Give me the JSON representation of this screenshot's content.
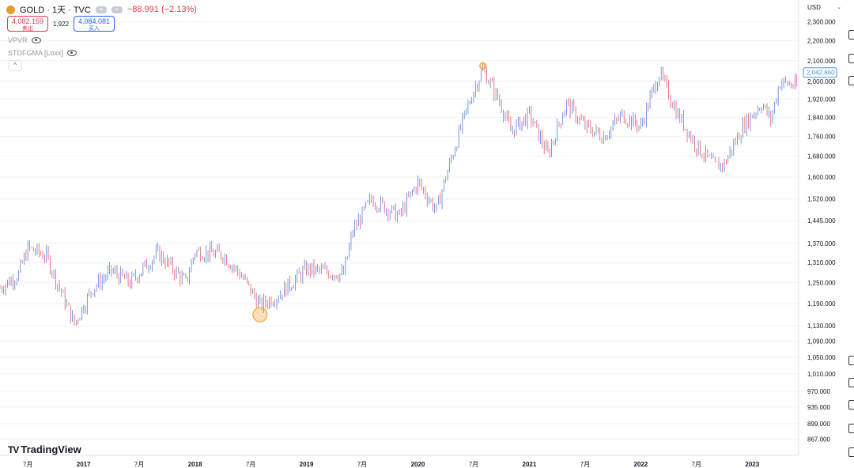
{
  "header": {
    "symbol": "GOLD · 1天 · TVC",
    "change": "−88.991 (−2.13%)",
    "market_icon": "market-status-icon",
    "sell_price": "4,082.159",
    "sell_label": "卖出",
    "spread": "1,922",
    "buy_price": "4,084.081",
    "buy_label": "买入"
  },
  "indicators": [
    {
      "name": "VPVR"
    },
    {
      "name": "STDFGMA [Loxx]"
    }
  ],
  "currency": "USD",
  "brand": "TradingView",
  "colors": {
    "up": "#5b7ee0",
    "down": "#e05a6a",
    "highlight": "#f2a33a",
    "last_price": "#4a90d9"
  },
  "chart_data": {
    "type": "candlestick",
    "y_ticks": [
      2300,
      2200,
      2100,
      2000,
      1920,
      1840,
      1760,
      1680,
      1600,
      1520,
      1445,
      1370,
      1310,
      1250,
      1190,
      1130,
      1090,
      1050,
      1010,
      970,
      935,
      899,
      867
    ],
    "y_tick_labels": [
      "2,300.000",
      "2,200.000",
      "2,100.000",
      "2,000.000",
      "1,920.000",
      "1,840.000",
      "1,760.000",
      "1,680.000",
      "1,600.000",
      "1,520.000",
      "1,445.000",
      "1,370.000",
      "1,310.000",
      "1,250.000",
      "1,190.000",
      "1,130.000",
      "1,090.000",
      "1,050.000",
      "1,010.000",
      "970.000",
      "935.000",
      "899.000",
      "867.000"
    ],
    "y_scale": "log",
    "ylim": [
      835,
      2420
    ],
    "x_labels": [
      {
        "date": "2016-07",
        "label": "7月"
      },
      {
        "date": "2017-01",
        "label": "2017"
      },
      {
        "date": "2017-07",
        "label": "7月"
      },
      {
        "date": "2018-01",
        "label": "2018"
      },
      {
        "date": "2018-07",
        "label": "7月"
      },
      {
        "date": "2019-01",
        "label": "2019"
      },
      {
        "date": "2019-07",
        "label": "7月"
      },
      {
        "date": "2020-01",
        "label": "2020"
      },
      {
        "date": "2020-07",
        "label": "7月"
      },
      {
        "date": "2021-01",
        "label": "2021"
      },
      {
        "date": "2021-07",
        "label": "7月"
      },
      {
        "date": "2022-01",
        "label": "2022"
      },
      {
        "date": "2022-07",
        "label": "7月"
      },
      {
        "date": "2023-01",
        "label": "2023"
      }
    ],
    "xlim": [
      "2016-04",
      "2023-06"
    ],
    "last_price": 2042.86,
    "last_price_label": "2,042.860",
    "price_path": [
      [
        "2016-04",
        1235
      ],
      [
        "2016-06",
        1275
      ],
      [
        "2016-07",
        1355
      ],
      [
        "2016-09",
        1330
      ],
      [
        "2016-10",
        1260
      ],
      [
        "2016-12",
        1135
      ],
      [
        "2017-02",
        1235
      ],
      [
        "2017-04",
        1285
      ],
      [
        "2017-06",
        1250
      ],
      [
        "2017-09",
        1340
      ],
      [
        "2017-12",
        1250
      ],
      [
        "2018-01",
        1345
      ],
      [
        "2018-04",
        1335
      ],
      [
        "2018-06",
        1270
      ],
      [
        "2018-08",
        1185
      ],
      [
        "2018-10",
        1215
      ],
      [
        "2019-01",
        1290
      ],
      [
        "2019-05",
        1275
      ],
      [
        "2019-06",
        1410
      ],
      [
        "2019-08",
        1520
      ],
      [
        "2019-11",
        1460
      ],
      [
        "2020-01",
        1580
      ],
      [
        "2020-03",
        1480
      ],
      [
        "2020-05",
        1720
      ],
      [
        "2020-07",
        1960
      ],
      [
        "2020-08",
        2060
      ],
      [
        "2020-10",
        1890
      ],
      [
        "2020-11",
        1780
      ],
      [
        "2021-01",
        1850
      ],
      [
        "2021-03",
        1685
      ],
      [
        "2021-05",
        1900
      ],
      [
        "2021-07",
        1800
      ],
      [
        "2021-09",
        1760
      ],
      [
        "2021-11",
        1850
      ],
      [
        "2022-01",
        1800
      ],
      [
        "2022-03",
        2040
      ],
      [
        "2022-05",
        1850
      ],
      [
        "2022-07",
        1720
      ],
      [
        "2022-09",
        1640
      ],
      [
        "2022-10",
        1650
      ],
      [
        "2022-12",
        1800
      ],
      [
        "2023-02",
        1900
      ],
      [
        "2023-03",
        1830
      ],
      [
        "2023-04",
        2000
      ],
      [
        "2023-06",
        1975
      ]
    ],
    "markers": [
      {
        "date": "2020-08",
        "value": 2075,
        "kind": "high"
      },
      {
        "date": "2018-08",
        "value": 1160,
        "kind": "low"
      }
    ]
  }
}
